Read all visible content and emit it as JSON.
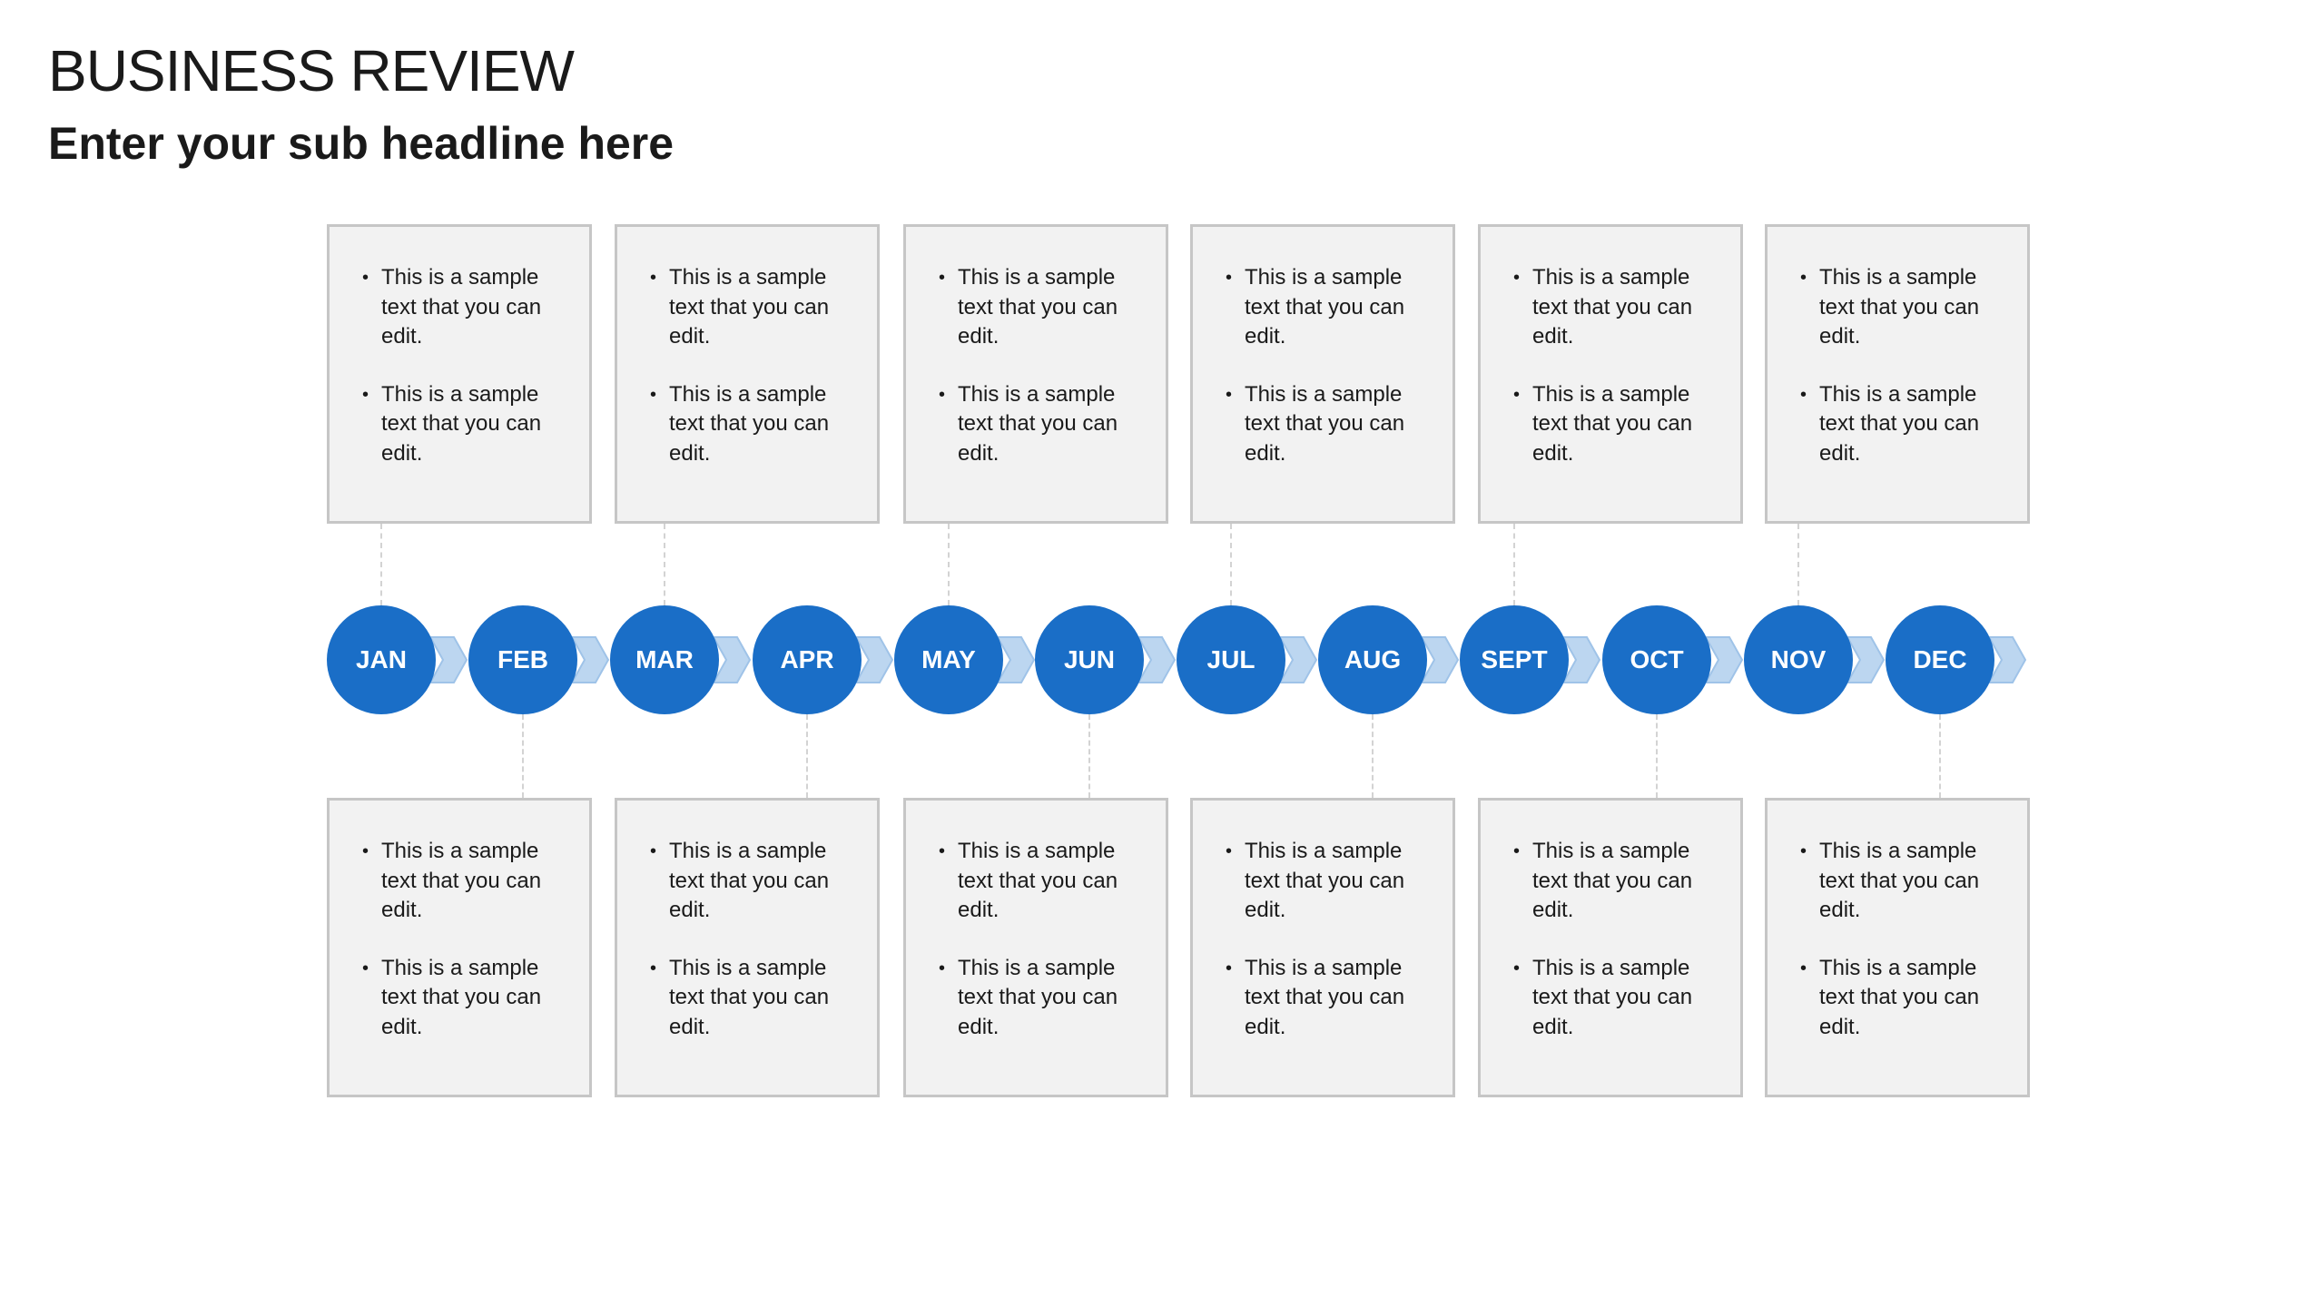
{
  "title": "BUSINESS REVIEW",
  "subtitle": "Enter your sub headline here",
  "months": [
    "JAN",
    "FEB",
    "MAR",
    "APR",
    "MAY",
    "JUN",
    "JUL",
    "AUG",
    "SEPT",
    "OCT",
    "NOV",
    "DEC"
  ],
  "top_boxes": [
    {
      "bullets": [
        "This is a sample text that you can edit.",
        "This is a sample text that you can edit."
      ]
    },
    {
      "bullets": [
        "This is a sample text that you can edit.",
        "This is a sample text that you can edit."
      ]
    },
    {
      "bullets": [
        "This is a sample text that you can edit.",
        "This is a sample text that you can edit."
      ]
    },
    {
      "bullets": [
        "This is a sample text that you can edit.",
        "This is a sample text that you can edit."
      ]
    },
    {
      "bullets": [
        "This is a sample text that you can edit.",
        "This is a sample text that you can edit."
      ]
    },
    {
      "bullets": [
        "This is a sample text that you can edit.",
        "This is a sample text that you can edit."
      ]
    }
  ],
  "bottom_boxes": [
    {
      "bullets": [
        "This is a sample text that you can edit.",
        "This is a sample text that you can edit."
      ]
    },
    {
      "bullets": [
        "This is a sample text that you can edit.",
        "This is a sample text that you can edit."
      ]
    },
    {
      "bullets": [
        "This is a sample text that you can edit.",
        "This is a sample text that you can edit."
      ]
    },
    {
      "bullets": [
        "This is a sample text that you can edit.",
        "This is a sample text that you can edit."
      ]
    },
    {
      "bullets": [
        "This is a sample text that you can edit.",
        "This is a sample text that you can edit."
      ]
    },
    {
      "bullets": [
        "This is a sample text that you can edit.",
        "This is a sample text that you can edit."
      ]
    }
  ],
  "colors": {
    "circle": "#1a6ec7",
    "chevron": "#bcd6f0",
    "chevron_stroke": "#9fc3e8",
    "box_fill": "#f2f2f2",
    "box_border": "#c6c6c6",
    "connector": "#d3d3d3"
  }
}
